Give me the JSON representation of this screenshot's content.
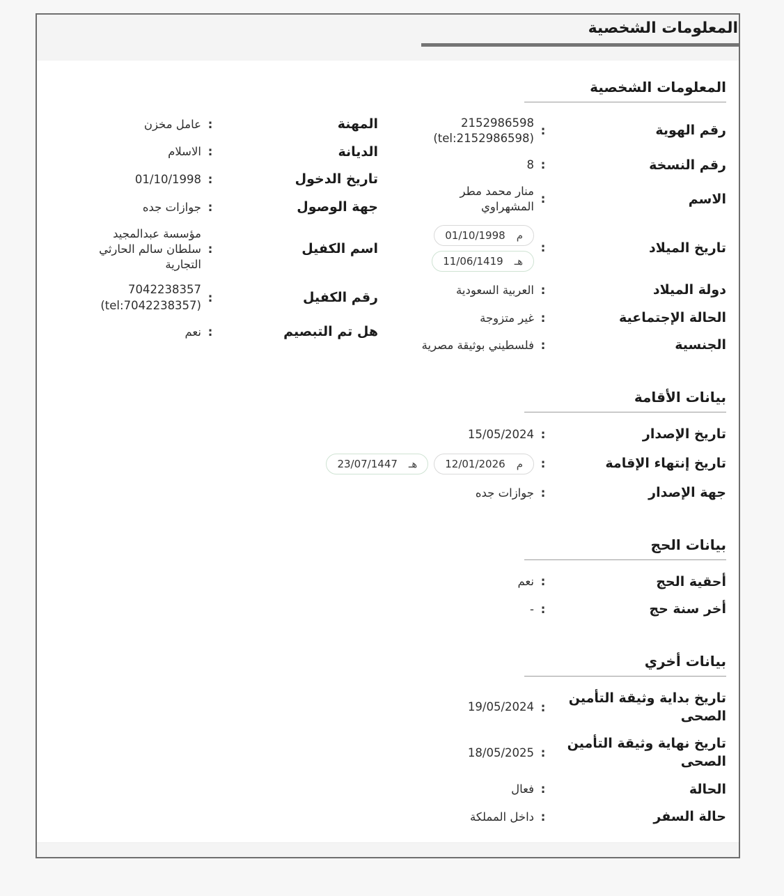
{
  "ui": {
    "colon": ":"
  },
  "header": {
    "title": "المعلومات الشخصية"
  },
  "personal_section": {
    "heading": "المعلومات الشخصية",
    "right_rows": [
      {
        "label": "رقم الهوية",
        "value": "2152986598 (tel:2152986598)"
      },
      {
        "label": "رقم النسخة",
        "value": "8"
      },
      {
        "label": "الاسم",
        "value": "منار محمد مطر المشهراوي"
      },
      {
        "label": "تاريخ الميلاد",
        "pills": [
          {
            "cal": "م",
            "date": "01/10/1998"
          },
          {
            "cal": "هـ",
            "date": "11/06/1419"
          }
        ]
      },
      {
        "label": "دولة الميلاد",
        "value": "العربية السعودية"
      },
      {
        "label": "الحالة الإجتماعية",
        "value": "غير متزوجة"
      },
      {
        "label": "الجنسية",
        "value": "فلسطيني بوثيقة مصرية"
      }
    ],
    "left_rows": [
      {
        "label": "المهنة",
        "value": "عامل مخزن"
      },
      {
        "label": "الديانة",
        "value": "الاسلام"
      },
      {
        "label": "تاريخ الدخول",
        "value": "01/10/1998"
      },
      {
        "label": "جهة الوصول",
        "value": "جوازات جده"
      },
      {
        "label": "اسم الكفيل",
        "value": "مؤسسة عبدالمجيد سلطان سالم الحارثي التجارية"
      },
      {
        "label": "رقم الكفيل",
        "value": "7042238357 (tel:7042238357)"
      },
      {
        "label": "هل تم التبصيم",
        "value": "نعم"
      }
    ]
  },
  "residence_section": {
    "heading": "بيانات الأقامة",
    "rows": [
      {
        "label": "تاريخ الإصدار",
        "value": "15/05/2024"
      },
      {
        "label": "تاريخ إنتهاء الإقامة",
        "pills": [
          {
            "cal": "م",
            "date": "12/01/2026"
          },
          {
            "cal": "هـ",
            "date": "23/07/1447"
          }
        ]
      },
      {
        "label": "جهة الإصدار",
        "value": "جوازات جده"
      }
    ]
  },
  "hajj_section": {
    "heading": "بيانات الحج",
    "rows": [
      {
        "label": "أحقية الحج",
        "value": "نعم"
      },
      {
        "label": "أخر سنة حج",
        "value": "-"
      }
    ]
  },
  "other_section": {
    "heading": "بيانات أخري",
    "rows": [
      {
        "label": "تاريخ بداية وثيقة التأمين الصحى",
        "value": "19/05/2024"
      },
      {
        "label": "تاريخ نهاية وثيقة التأمين الصحى",
        "value": "18/05/2025"
      },
      {
        "label": "الحالة",
        "value": "فعال"
      },
      {
        "label": "حالة السفر",
        "value": "داخل المملكة"
      }
    ]
  },
  "colors": {
    "page_background": "#f7f7f7",
    "card_border": "#6e6e6e",
    "header_band": "#f4f4f4",
    "title_bar": "#747474",
    "heading_rule": "#9c9c9c",
    "gregorian_pill_border": "#d9d9d9",
    "hijri_pill_border": "#cfe3d3",
    "label_text": "#1b1b1b",
    "value_text": "#2e2e2e"
  }
}
